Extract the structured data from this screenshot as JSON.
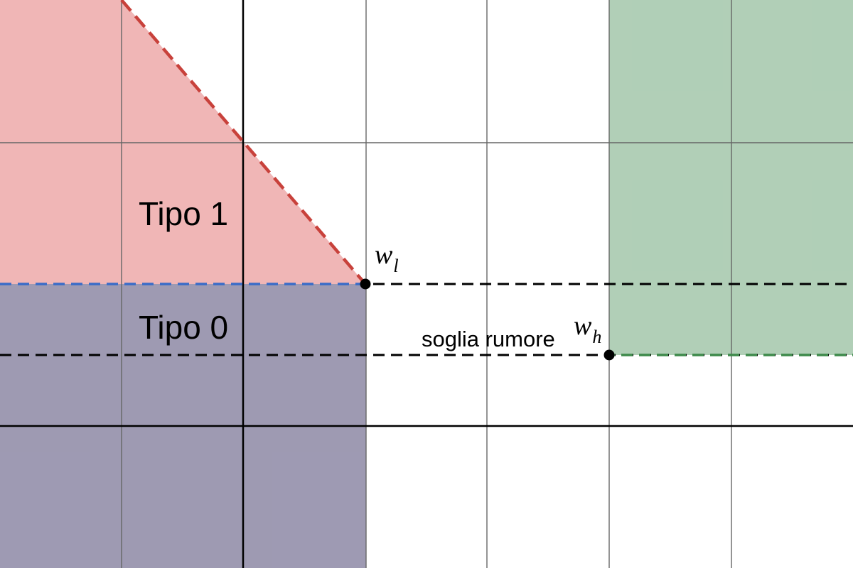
{
  "regions": {
    "type1": {
      "label": "Tipo 1",
      "color": "#e06666"
    },
    "type0": {
      "label": "Tipo 0",
      "color": "#3d3566"
    },
    "type2": {
      "color": "#5b9a68"
    }
  },
  "lines": {
    "boundary_type1_color": "#c8413b",
    "boundary_type0_color": "#3a6cc8",
    "boundary_type2_color": "#3d8a4a",
    "threshold_color": "#000000",
    "noise_label": "soglia rumore"
  },
  "points": {
    "wl": {
      "symbol": "w",
      "subscript": "l"
    },
    "wh": {
      "symbol": "w",
      "subscript": "h"
    }
  },
  "axis_color": "#000000",
  "grid_color": "#666666"
}
